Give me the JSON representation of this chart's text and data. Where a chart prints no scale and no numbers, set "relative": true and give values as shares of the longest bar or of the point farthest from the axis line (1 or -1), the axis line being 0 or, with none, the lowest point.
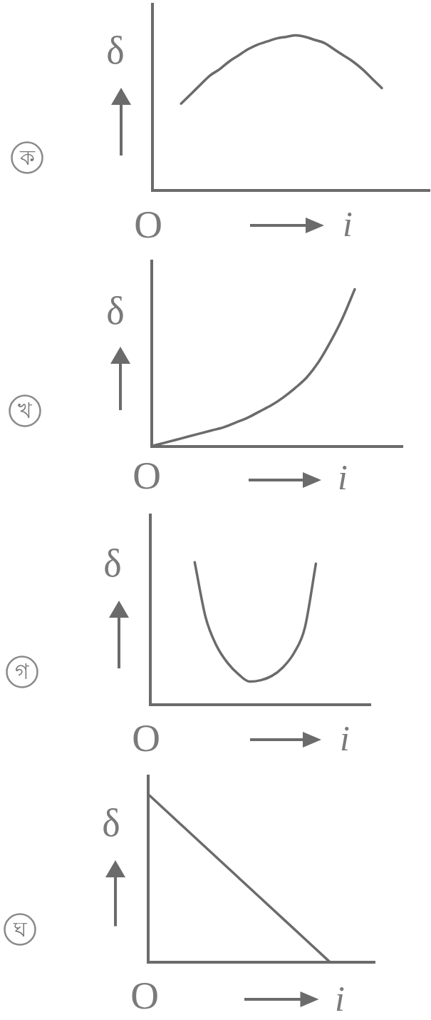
{
  "chart_data": [
    {
      "type": "line",
      "xlabel": "i",
      "ylabel": "δ",
      "annotations": [
        "ক",
        "O"
      ],
      "relative": true,
      "categories": [
        null,
        null,
        null,
        null,
        null,
        null,
        null,
        null,
        null,
        null,
        null,
        null,
        null,
        null,
        null,
        null,
        null,
        null,
        null,
        null,
        null,
        null,
        null,
        null,
        null,
        null,
        null,
        null,
        null,
        null
      ],
      "values": [
        null,
        null,
        null,
        0.56,
        0.62,
        0.68,
        0.74,
        0.78,
        0.83,
        0.87,
        0.91,
        0.94,
        0.96,
        0.98,
        0.99,
        1,
        0.99,
        0.97,
        0.95,
        0.91,
        0.87,
        0.83,
        0.78,
        0.72,
        0.66,
        null,
        null,
        null,
        null,
        null
      ],
      "color": "#6b6b6b"
    },
    {
      "type": "line",
      "xlabel": "i",
      "ylabel": "δ",
      "annotations": [
        "খ",
        "O"
      ],
      "relative": true,
      "categories": [
        null,
        null,
        null,
        null,
        null,
        null,
        null,
        null,
        null,
        null,
        null,
        null,
        null,
        null,
        null,
        null,
        null,
        null,
        null,
        null,
        null,
        null
      ],
      "values": [
        0,
        0.02,
        0.04,
        0.06,
        0.08,
        0.1,
        0.12,
        0.15,
        0.18,
        0.22,
        0.26,
        0.31,
        0.37,
        0.44,
        0.54,
        0.67,
        0.82,
        1,
        null,
        null,
        null,
        null
      ],
      "color": "#6b6b6b"
    },
    {
      "type": "line",
      "xlabel": "i",
      "ylabel": "δ",
      "annotations": [
        "গ",
        "O"
      ],
      "relative": true,
      "categories": [
        null,
        null,
        null,
        null,
        null,
        null,
        null,
        null,
        null,
        null,
        null,
        null,
        null,
        null,
        null,
        null,
        null,
        null,
        null,
        null,
        null
      ],
      "values": [
        null,
        null,
        null,
        null,
        1,
        0.61,
        0.41,
        0.29,
        0.21,
        0.16,
        0.17,
        0.2,
        0.26,
        0.36,
        0.54,
        0.99,
        null,
        null,
        null,
        null,
        null
      ],
      "color": "#6b6b6b"
    },
    {
      "type": "line",
      "xlabel": "i",
      "ylabel": "δ",
      "annotations": [
        "ঘ",
        "O"
      ],
      "relative": true,
      "categories": [
        null,
        null,
        null,
        null,
        null,
        null
      ],
      "values": [
        1,
        0.75,
        0.5,
        0.25,
        0,
        null
      ],
      "color": "#6b6b6b"
    }
  ]
}
